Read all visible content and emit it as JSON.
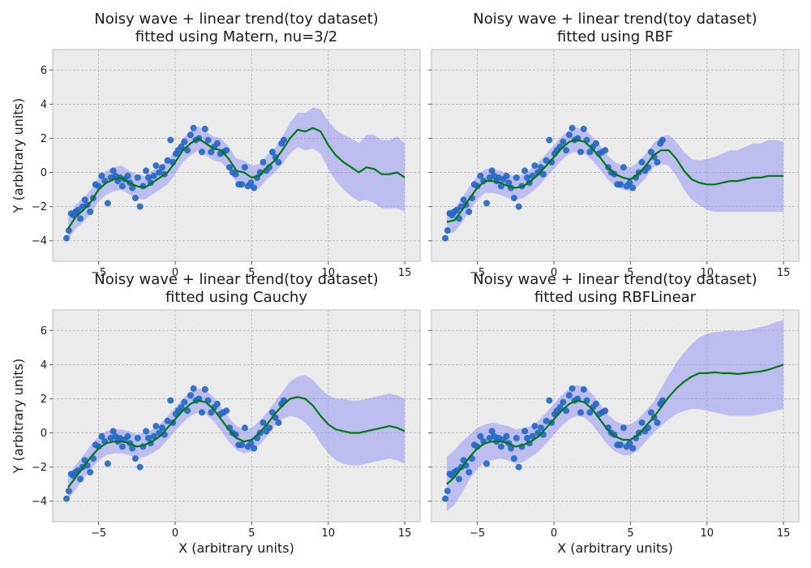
{
  "figure": {
    "background": "#ffffff",
    "axes_facecolor": "#ebebeb",
    "grid_color": "#b3b3b3",
    "fit_color": "#007a0f",
    "band_color": "#8f8ff5",
    "point_color": "#2166c4"
  },
  "chart_data": [
    {
      "type": "scatter",
      "title": "Noisy wave + linear trend(toy dataset)\nfitted using Matern, nu=3/2",
      "xlabel": "",
      "ylabel": "Y (arbitrary units)",
      "xlim": [
        -8,
        16
      ],
      "ylim": [
        -5.2,
        7.2
      ],
      "xticks": [
        -5,
        0,
        5,
        10,
        15
      ],
      "yticks": [
        -4,
        -2,
        0,
        2,
        4,
        6
      ],
      "grid": true,
      "series": [
        {
          "role": "fit",
          "x": [
            -7,
            -6.5,
            -6,
            -5.5,
            -5,
            -4.5,
            -4,
            -3.5,
            -3,
            -2.5,
            -2,
            -1.5,
            -1,
            -0.5,
            0,
            0.5,
            1,
            1.5,
            2,
            2.5,
            3,
            3.5,
            4,
            4.5,
            5,
            5.5,
            6,
            6.5,
            7,
            7.5,
            8,
            8.5,
            9,
            9.5,
            10,
            10.5,
            11,
            11.5,
            12,
            12.5,
            13,
            13.5,
            14,
            14.5,
            15
          ],
          "y": [
            -3.3,
            -2.6,
            -2.2,
            -1.7,
            -1.0,
            -0.6,
            -0.4,
            -0.3,
            -0.6,
            -0.8,
            -0.9,
            -0.6,
            -0.3,
            0.0,
            0.6,
            1.3,
            1.7,
            2.0,
            1.7,
            1.4,
            1.3,
            0.8,
            0.1,
            0.0,
            -0.3,
            -0.2,
            0.3,
            0.7,
            1.3,
            2.0,
            2.5,
            2.4,
            2.6,
            2.4,
            1.6,
            1.0,
            0.6,
            0.3,
            0.0,
            0.3,
            0.2,
            -0.1,
            -0.1,
            0.0,
            -0.3
          ],
          "y_lower": [
            -3.9,
            -3.3,
            -2.9,
            -2.4,
            -1.7,
            -1.3,
            -1.1,
            -1.0,
            -1.3,
            -1.5,
            -1.6,
            -1.3,
            -1.0,
            -0.7,
            -0.1,
            0.6,
            1.0,
            1.3,
            1.0,
            0.7,
            0.6,
            0.1,
            -0.6,
            -0.7,
            -1.0,
            -0.9,
            -0.4,
            0.0,
            0.5,
            1.1,
            1.5,
            1.3,
            1.4,
            1.1,
            0.2,
            -0.5,
            -1.0,
            -1.4,
            -1.7,
            -1.6,
            -1.8,
            -2.1,
            -2.1,
            -2.1,
            -2.3
          ],
          "y_upper": [
            -2.7,
            -1.9,
            -1.5,
            -1.0,
            -0.3,
            0.1,
            0.3,
            0.4,
            0.1,
            -0.1,
            -0.2,
            0.1,
            0.4,
            0.7,
            1.3,
            2.0,
            2.4,
            2.7,
            2.4,
            2.1,
            2.0,
            1.5,
            0.8,
            0.7,
            0.4,
            0.5,
            1.0,
            1.4,
            2.1,
            2.9,
            3.5,
            3.5,
            3.8,
            3.7,
            3.0,
            2.5,
            2.2,
            2.0,
            1.7,
            2.2,
            2.2,
            1.9,
            1.9,
            2.1,
            1.7
          ]
        }
      ]
    },
    {
      "type": "scatter",
      "title": "Noisy wave + linear trend(toy dataset)\nfitted using RBF",
      "xlabel": "",
      "ylabel": "",
      "xlim": [
        -8,
        16
      ],
      "ylim": [
        -5.2,
        7.2
      ],
      "xticks": [
        -5,
        0,
        5,
        10,
        15
      ],
      "yticks": [
        -4,
        -2,
        0,
        2,
        4,
        6
      ],
      "grid": true,
      "series": [
        {
          "role": "fit",
          "x": [
            -7,
            -6.5,
            -6,
            -5.5,
            -5,
            -4.5,
            -4,
            -3.5,
            -3,
            -2.5,
            -2,
            -1.5,
            -1,
            -0.5,
            0,
            0.5,
            1,
            1.5,
            2,
            2.5,
            3,
            3.5,
            4,
            4.5,
            5,
            5.5,
            6,
            6.5,
            7,
            7.5,
            8,
            8.5,
            9,
            9.5,
            10,
            10.5,
            11,
            11.5,
            12,
            12.5,
            13,
            13.5,
            14,
            14.5,
            15
          ],
          "y": [
            -2.9,
            -2.8,
            -2.2,
            -1.5,
            -0.9,
            -0.5,
            -0.5,
            -0.6,
            -0.8,
            -0.9,
            -0.8,
            -0.5,
            -0.1,
            0.4,
            0.9,
            1.4,
            1.8,
            1.9,
            1.8,
            1.4,
            0.9,
            0.3,
            -0.1,
            -0.3,
            -0.4,
            -0.1,
            0.4,
            1.0,
            1.3,
            1.3,
            0.8,
            0.1,
            -0.4,
            -0.6,
            -0.7,
            -0.7,
            -0.6,
            -0.5,
            -0.5,
            -0.4,
            -0.3,
            -0.3,
            -0.2,
            -0.2,
            -0.2
          ],
          "y_lower": [
            -3.6,
            -3.5,
            -2.9,
            -2.2,
            -1.6,
            -1.2,
            -1.2,
            -1.3,
            -1.5,
            -1.6,
            -1.5,
            -1.2,
            -0.8,
            -0.3,
            0.2,
            0.7,
            1.1,
            1.2,
            1.1,
            0.7,
            0.2,
            -0.4,
            -0.8,
            -1.0,
            -1.1,
            -0.8,
            -0.3,
            0.3,
            0.5,
            0.4,
            -0.2,
            -1.0,
            -1.6,
            -1.9,
            -2.2,
            -2.3,
            -2.3,
            -2.3,
            -2.3,
            -2.3,
            -2.3,
            -2.3,
            -2.3,
            -2.3,
            -2.3
          ],
          "y_upper": [
            -2.2,
            -2.1,
            -1.5,
            -0.8,
            -0.2,
            0.2,
            0.2,
            0.1,
            -0.1,
            -0.2,
            -0.1,
            0.2,
            0.6,
            1.1,
            1.6,
            2.1,
            2.5,
            2.6,
            2.5,
            2.1,
            1.6,
            1.0,
            0.6,
            0.4,
            0.3,
            0.6,
            1.1,
            1.7,
            2.1,
            2.2,
            1.8,
            1.2,
            0.8,
            0.7,
            0.8,
            0.9,
            1.1,
            1.3,
            1.3,
            1.5,
            1.7,
            1.7,
            1.9,
            1.9,
            1.8
          ]
        }
      ]
    },
    {
      "type": "scatter",
      "title": "Noisy wave + linear trend(toy dataset)\nfitted using Cauchy",
      "xlabel": "X (arbitrary units)",
      "ylabel": "Y (arbitrary units)",
      "xlim": [
        -8,
        16
      ],
      "ylim": [
        -5.2,
        7.2
      ],
      "xticks": [
        -5,
        0,
        5,
        10,
        15
      ],
      "yticks": [
        -4,
        -2,
        0,
        2,
        4,
        6
      ],
      "grid": true,
      "series": [
        {
          "role": "fit",
          "x": [
            -7,
            -6.5,
            -6,
            -5.5,
            -5,
            -4.5,
            -4,
            -3.5,
            -3,
            -2.5,
            -2,
            -1.5,
            -1,
            -0.5,
            0,
            0.5,
            1,
            1.5,
            2,
            2.5,
            3,
            3.5,
            4,
            4.5,
            5,
            5.5,
            6,
            6.5,
            7,
            7.5,
            8,
            8.5,
            9,
            9.5,
            10,
            10.5,
            11,
            11.5,
            12,
            12.5,
            13,
            13.5,
            14,
            14.5,
            15
          ],
          "y": [
            -3.2,
            -2.6,
            -2.0,
            -1.4,
            -0.9,
            -0.6,
            -0.5,
            -0.5,
            -0.6,
            -0.8,
            -0.7,
            -0.5,
            -0.2,
            0.3,
            0.8,
            1.3,
            1.7,
            1.9,
            1.8,
            1.4,
            0.8,
            0.2,
            -0.3,
            -0.5,
            -0.4,
            0.0,
            0.5,
            1.1,
            1.6,
            2.0,
            2.1,
            2.0,
            1.6,
            1.0,
            0.5,
            0.2,
            0.1,
            0.0,
            0.0,
            0.1,
            0.2,
            0.3,
            0.4,
            0.3,
            0.1
          ],
          "y_lower": [
            -3.9,
            -3.3,
            -2.7,
            -2.1,
            -1.6,
            -1.3,
            -1.2,
            -1.2,
            -1.3,
            -1.5,
            -1.4,
            -1.2,
            -0.9,
            -0.4,
            0.1,
            0.6,
            1.0,
            1.2,
            1.1,
            0.7,
            0.1,
            -0.5,
            -1.0,
            -1.2,
            -1.1,
            -0.7,
            -0.2,
            0.4,
            0.8,
            1.0,
            0.9,
            0.6,
            0.1,
            -0.6,
            -1.2,
            -1.6,
            -1.8,
            -1.9,
            -1.9,
            -1.8,
            -1.7,
            -1.6,
            -1.5,
            -1.6,
            -1.8
          ],
          "y_upper": [
            -2.5,
            -1.9,
            -1.3,
            -0.7,
            -0.2,
            0.1,
            0.2,
            0.2,
            0.1,
            -0.1,
            0.0,
            0.2,
            0.5,
            1.0,
            1.5,
            2.0,
            2.4,
            2.6,
            2.5,
            2.1,
            1.5,
            0.9,
            0.4,
            0.2,
            0.3,
            0.7,
            1.2,
            1.8,
            2.4,
            3.0,
            3.3,
            3.4,
            3.1,
            2.6,
            2.2,
            2.0,
            2.0,
            1.9,
            1.9,
            2.0,
            2.1,
            2.2,
            2.3,
            2.2,
            2.0
          ]
        }
      ]
    },
    {
      "type": "scatter",
      "title": "Noisy wave + linear trend(toy dataset)\nfitted using RBFLinear",
      "xlabel": "X (arbitrary units)",
      "ylabel": "",
      "xlim": [
        -8,
        16
      ],
      "ylim": [
        -5.2,
        7.2
      ],
      "xticks": [
        -5,
        0,
        5,
        10,
        15
      ],
      "yticks": [
        -4,
        -2,
        0,
        2,
        4,
        6
      ],
      "grid": true,
      "series": [
        {
          "role": "fit",
          "x": [
            -7,
            -6.5,
            -6,
            -5.5,
            -5,
            -4.5,
            -4,
            -3.5,
            -3,
            -2.5,
            -2,
            -1.5,
            -1,
            -0.5,
            0,
            0.5,
            1,
            1.5,
            2,
            2.5,
            3,
            3.5,
            4,
            4.5,
            5,
            5.5,
            6,
            6.5,
            7,
            7.5,
            8,
            8.5,
            9,
            9.5,
            10,
            10.5,
            11,
            11.5,
            12,
            12.5,
            13,
            13.5,
            14,
            14.5,
            15
          ],
          "y": [
            -3.0,
            -2.6,
            -2.0,
            -1.4,
            -0.9,
            -0.6,
            -0.5,
            -0.5,
            -0.6,
            -0.8,
            -0.7,
            -0.5,
            -0.2,
            0.3,
            0.8,
            1.3,
            1.7,
            1.9,
            1.8,
            1.4,
            0.8,
            0.2,
            -0.2,
            -0.4,
            -0.4,
            -0.1,
            0.4,
            0.9,
            1.5,
            2.1,
            2.6,
            3.0,
            3.3,
            3.5,
            3.5,
            3.55,
            3.5,
            3.5,
            3.45,
            3.5,
            3.55,
            3.6,
            3.7,
            3.85,
            4.0
          ],
          "y_lower": [
            -4.6,
            -4.2,
            -3.5,
            -2.7,
            -2.1,
            -1.7,
            -1.6,
            -1.5,
            -1.6,
            -1.8,
            -1.7,
            -1.4,
            -1.1,
            -0.6,
            -0.1,
            0.4,
            0.8,
            1.0,
            0.9,
            0.5,
            -0.1,
            -0.7,
            -1.1,
            -1.3,
            -1.3,
            -1.0,
            -0.5,
            0.0,
            0.4,
            0.8,
            1.1,
            1.3,
            1.4,
            1.4,
            1.3,
            1.2,
            1.1,
            1.0,
            1.0,
            1.0,
            1.0,
            1.1,
            1.2,
            1.3,
            1.4
          ],
          "y_upper": [
            -1.4,
            -1.0,
            -0.5,
            -0.1,
            0.3,
            0.5,
            0.6,
            0.5,
            0.4,
            0.2,
            0.3,
            0.4,
            0.7,
            1.2,
            1.7,
            2.2,
            2.6,
            2.8,
            2.7,
            2.3,
            1.7,
            1.1,
            0.7,
            0.5,
            0.5,
            0.8,
            1.3,
            1.8,
            2.6,
            3.4,
            4.1,
            4.7,
            5.2,
            5.6,
            5.8,
            5.9,
            5.95,
            6.0,
            5.95,
            6.0,
            6.1,
            6.2,
            6.3,
            6.5,
            6.6
          ]
        }
      ]
    }
  ],
  "observations": {
    "x": [
      -7.1,
      -6.95,
      -6.8,
      -6.65,
      -6.5,
      -6.35,
      -6.2,
      -6.05,
      -5.9,
      -5.75,
      -5.55,
      -5.35,
      -5.2,
      -5.0,
      -4.8,
      -4.6,
      -4.4,
      -4.2,
      -4.05,
      -3.9,
      -3.75,
      -3.6,
      -3.45,
      -3.3,
      -3.1,
      -2.95,
      -2.8,
      -2.6,
      -2.45,
      -2.3,
      -2.1,
      -1.9,
      -1.75,
      -1.6,
      -1.4,
      -1.25,
      -1.05,
      -0.85,
      -0.7,
      -0.5,
      -0.3,
      -0.15,
      0.05,
      0.2,
      0.4,
      0.6,
      0.8,
      1.0,
      1.2,
      1.35,
      1.55,
      1.75,
      1.95,
      2.15,
      2.35,
      2.55,
      2.75,
      2.95,
      3.15,
      3.35,
      3.55,
      3.75,
      3.95,
      4.15,
      4.35,
      4.55,
      4.75,
      4.95,
      5.15,
      5.35,
      5.55,
      5.75,
      5.95,
      6.15,
      6.35,
      6.55,
      6.75,
      6.95,
      7.1
    ],
    "y": [
      -3.85,
      -3.4,
      -2.4,
      -2.5,
      -2.3,
      -2.2,
      -2.7,
      -2.0,
      -1.6,
      -1.9,
      -2.3,
      -1.5,
      -0.7,
      -0.8,
      -0.2,
      -0.5,
      -1.8,
      -0.3,
      0.1,
      -0.2,
      -0.5,
      -0.3,
      -0.8,
      -0.4,
      -0.2,
      -0.6,
      -0.9,
      -1.5,
      -0.3,
      -2.0,
      -0.8,
      0.1,
      -0.3,
      -0.6,
      -0.2,
      0.4,
      0.0,
      0.3,
      -0.1,
      0.7,
      1.9,
      0.6,
      1.1,
      1.3,
      1.5,
      1.8,
      1.3,
      2.2,
      2.6,
      1.9,
      2.0,
      1.2,
      2.55,
      1.9,
      1.2,
      1.5,
      1.7,
      1.1,
      1.2,
      1.3,
      0.3,
      0.0,
      -0.1,
      -0.7,
      -0.7,
      0.3,
      -0.8,
      -0.6,
      -0.9,
      -0.3,
      0.0,
      0.6,
      0.1,
      0.3,
      1.2,
      0.9,
      0.6,
      1.7,
      1.9
    ]
  }
}
